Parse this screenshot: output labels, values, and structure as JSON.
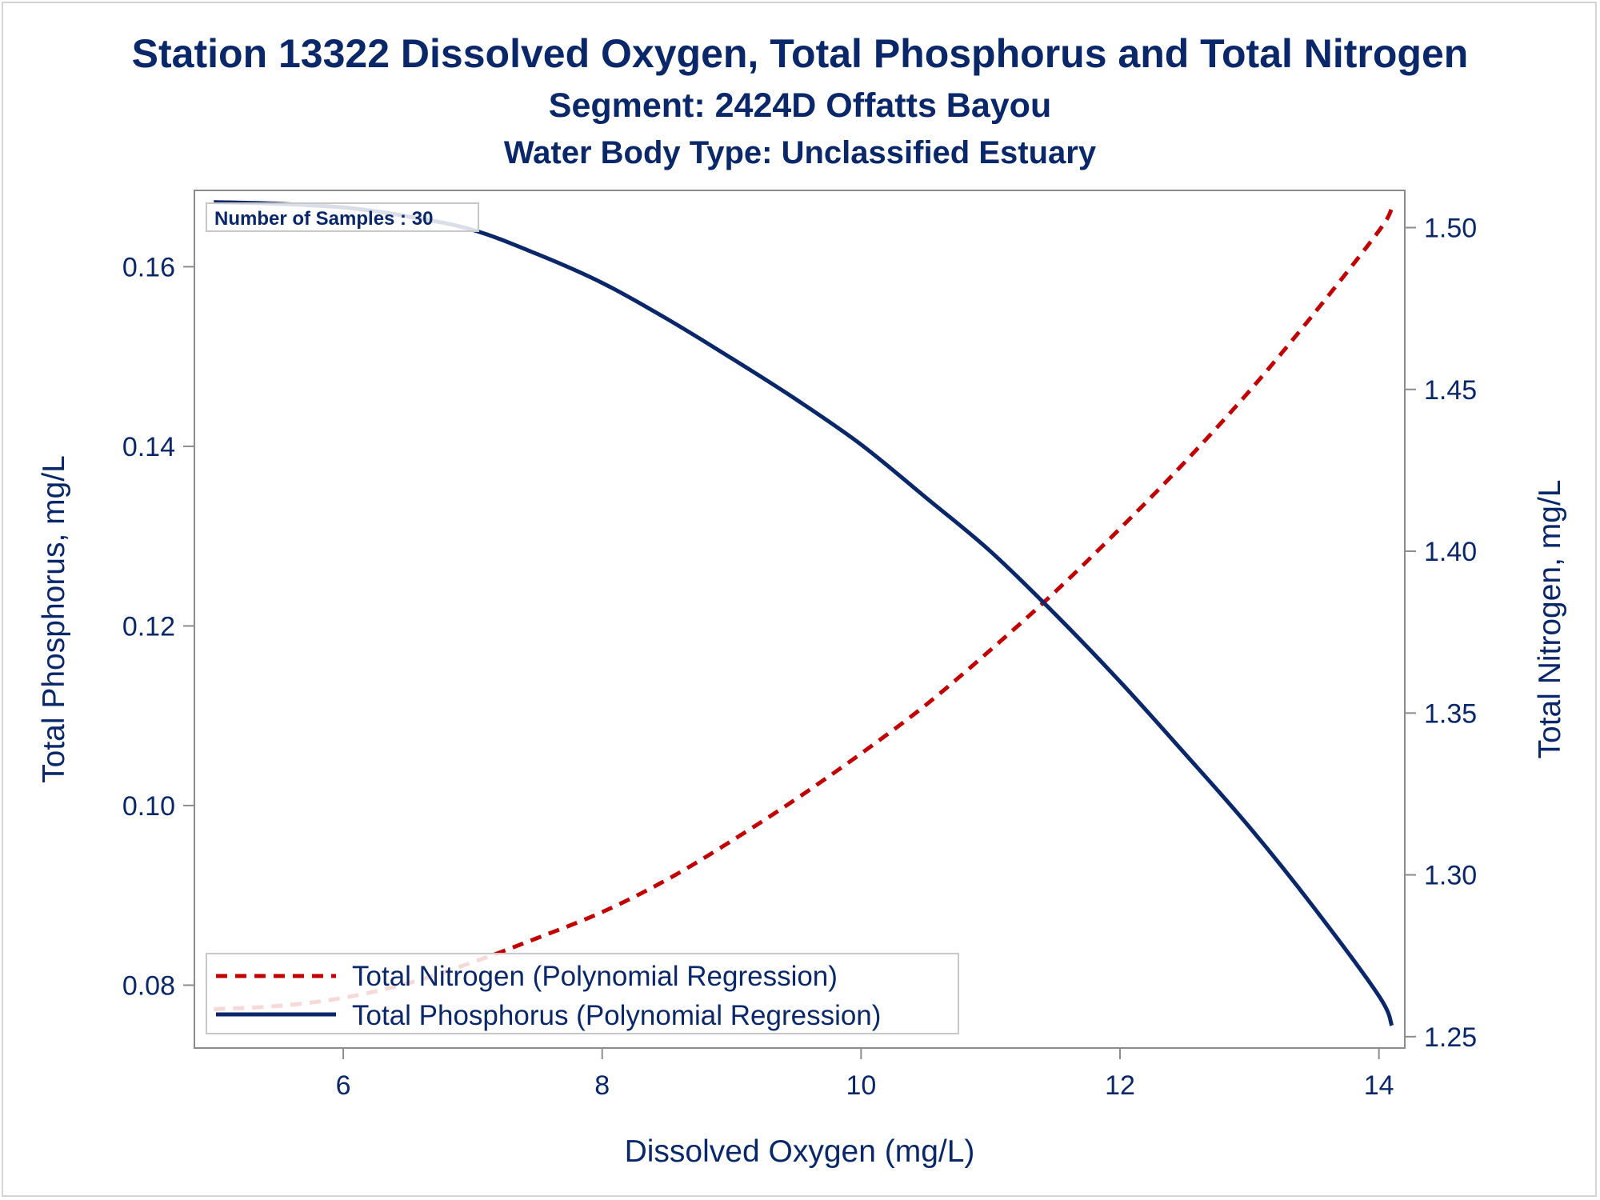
{
  "title": "Station 13322  Dissolved Oxygen, Total Phosphorus and Total Nitrogen",
  "subtitle": "Segment: 2424D  Offatts Bayou",
  "subtitle2": "Water Body Type: Unclassified Estuary",
  "inset": "Number of Samples : 30",
  "colors": {
    "nitrogen": "#c00000",
    "phosphorus": "#0a2769",
    "text": "#0a2769",
    "frame": "#8c8c8c"
  },
  "chart_data": {
    "type": "line",
    "xlabel": "Dissolved Oxygen (mg/L)",
    "ylabel": "Total Phosphorus, mg/L",
    "y2label": "Total Nitrogen, mg/L",
    "xlim": [
      4.85,
      14.2
    ],
    "ylim": [
      0.073,
      0.1685
    ],
    "y2lim": [
      1.2465,
      1.5115
    ],
    "xticks": [
      6,
      8,
      10,
      12,
      14
    ],
    "xtick_labels": [
      "6",
      "8",
      "10",
      "12",
      "14"
    ],
    "yticks": [
      0.08,
      0.1,
      0.12,
      0.14,
      0.16
    ],
    "ytick_labels": [
      "0.08",
      "0.10",
      "0.12",
      "0.14",
      "0.16"
    ],
    "y2ticks": [
      1.25,
      1.3,
      1.35,
      1.4,
      1.45,
      1.5
    ],
    "y2tick_labels": [
      "1.25",
      "1.30",
      "1.35",
      "1.40",
      "1.45",
      "1.50"
    ],
    "grid": false,
    "legend_position": "bottom-left",
    "series": [
      {
        "name": "Total Nitrogen (Polynomial Regression)",
        "axis": "right",
        "style": "dashed",
        "x": [
          5.0,
          5.5,
          6.0,
          6.5,
          7.0,
          7.5,
          8.0,
          8.5,
          9.0,
          9.5,
          10.0,
          10.5,
          11.0,
          11.5,
          12.0,
          12.5,
          13.0,
          13.5,
          14.0,
          14.1
        ],
        "values": [
          1.2585,
          1.2595,
          1.262,
          1.2665,
          1.273,
          1.2805,
          1.2885,
          1.2985,
          1.3105,
          1.3235,
          1.3375,
          1.3525,
          1.3695,
          1.3875,
          1.407,
          1.4275,
          1.4495,
          1.4735,
          1.499,
          1.506
        ]
      },
      {
        "name": "Total Phosphorus (Polynomial Regression)",
        "axis": "left",
        "style": "solid",
        "x": [
          5.0,
          5.5,
          6.0,
          6.5,
          7.0,
          7.5,
          8.0,
          8.5,
          9.0,
          9.5,
          10.0,
          10.5,
          11.0,
          11.5,
          12.0,
          12.5,
          13.0,
          13.5,
          14.0,
          14.1
        ],
        "values": [
          0.1672,
          0.167,
          0.1666,
          0.1656,
          0.1641,
          0.1614,
          0.1582,
          0.1542,
          0.1498,
          0.1452,
          0.1402,
          0.1343,
          0.1283,
          0.1213,
          0.1138,
          0.1058,
          0.0976,
          0.0886,
          0.0788,
          0.0755
        ]
      }
    ]
  }
}
